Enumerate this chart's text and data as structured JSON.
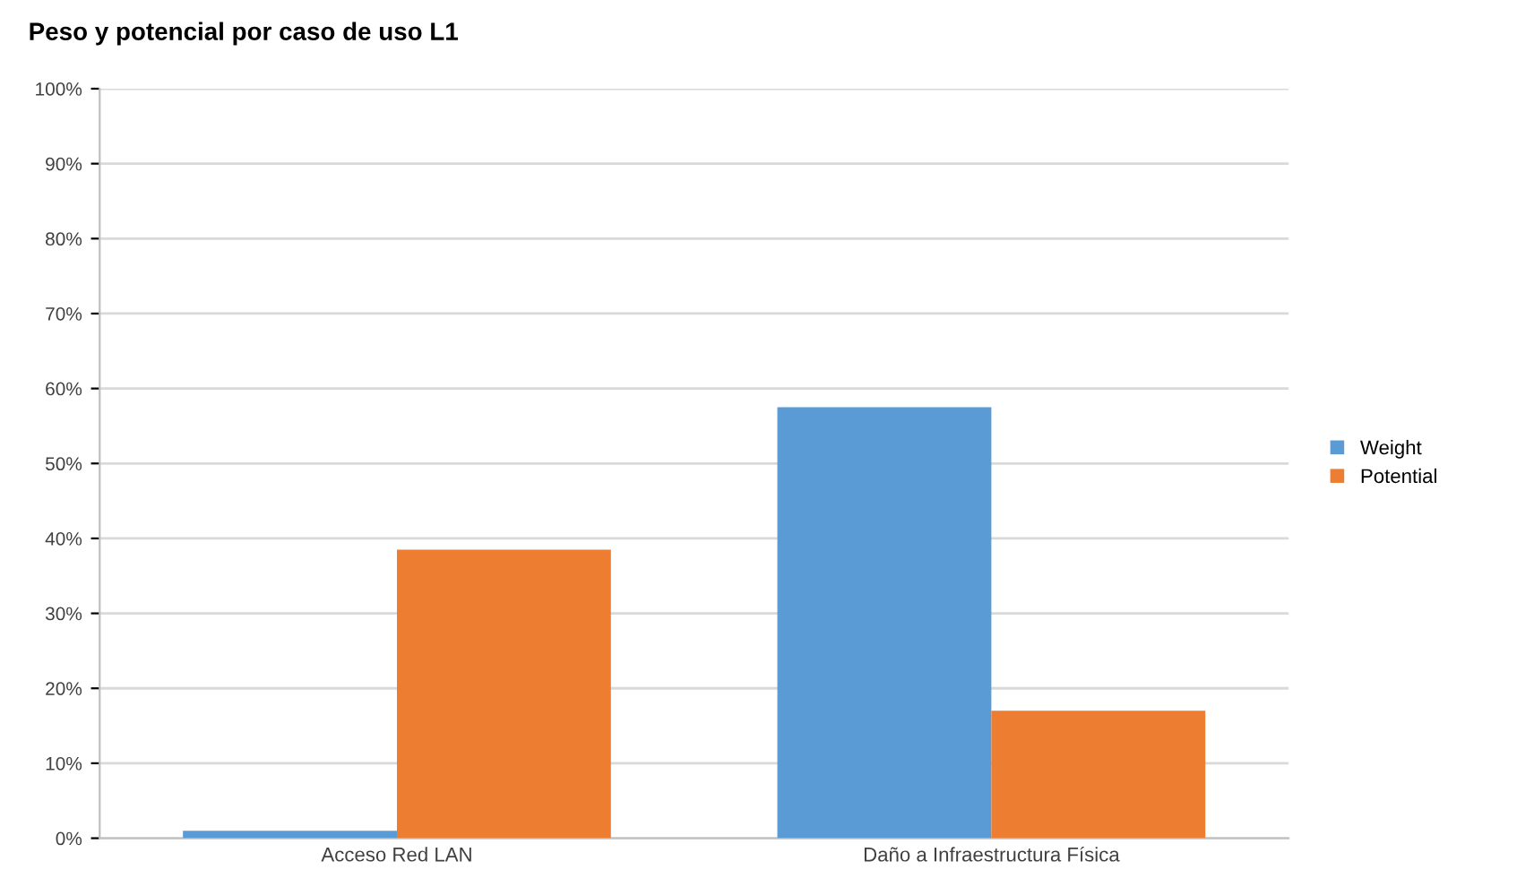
{
  "chart_data": {
    "type": "bar",
    "title": "Peso y potencial por caso de uso L1",
    "categories": [
      "Acceso Red LAN",
      "Daño a Infraestructura Física"
    ],
    "series": [
      {
        "name": "Weight",
        "color": "#5b9bd5",
        "values": [
          1,
          57.5
        ]
      },
      {
        "name": "Potential",
        "color": "#ed7d31",
        "values": [
          38.5,
          17
        ]
      }
    ],
    "ylim": [
      0,
      100
    ],
    "yticks": [
      {
        "value": 0,
        "label": "0%"
      },
      {
        "value": 10,
        "label": "10%"
      },
      {
        "value": 20,
        "label": "20%"
      },
      {
        "value": 30,
        "label": "30%"
      },
      {
        "value": 40,
        "label": "40%"
      },
      {
        "value": 50,
        "label": "50%"
      },
      {
        "value": 60,
        "label": "60%"
      },
      {
        "value": 70,
        "label": "70%"
      },
      {
        "value": 80,
        "label": "80%"
      },
      {
        "value": 90,
        "label": "90%"
      },
      {
        "value": 100,
        "label": "100%"
      }
    ],
    "grid": "y",
    "legend": "right"
  }
}
